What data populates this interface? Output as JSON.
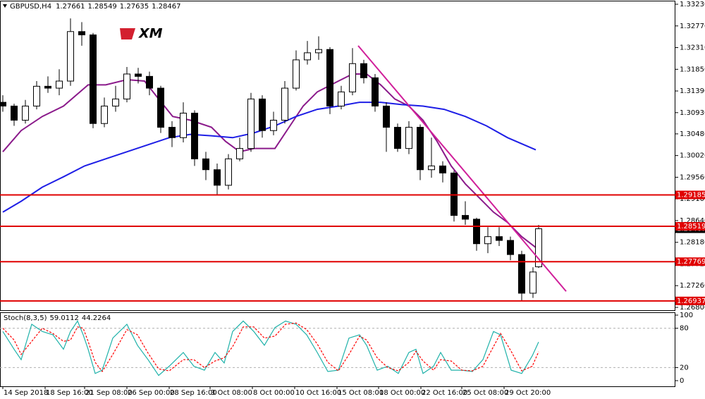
{
  "chart_data": [
    {
      "type": "candlestick",
      "title": "GBPUSD,H4",
      "ohlc": [
        1.27661,
        1.28549,
        1.27635,
        1.28467
      ],
      "logo": "XM",
      "bull_color": "#ffffff",
      "bear_color": "#000000",
      "x": [
        0,
        4,
        8,
        12,
        16,
        20,
        24,
        28,
        32,
        36,
        40,
        44,
        48,
        52,
        56,
        60,
        64,
        68,
        72,
        76,
        80,
        84,
        88,
        92,
        96,
        100,
        104,
        108,
        112,
        116,
        120,
        124,
        128,
        132,
        136,
        140,
        144,
        148,
        152,
        156,
        160,
        164,
        168,
        172,
        176,
        180,
        184,
        188,
        190
      ],
      "candles": [
        [
          1.3115,
          1.313,
          1.3095,
          1.3107
        ],
        [
          1.3107,
          1.3112,
          1.3065,
          1.3077
        ],
        [
          1.3077,
          1.312,
          1.307,
          1.3107
        ],
        [
          1.3107,
          1.316,
          1.31,
          1.3149
        ],
        [
          1.3149,
          1.317,
          1.3135,
          1.3145
        ],
        [
          1.3145,
          1.3185,
          1.313,
          1.316
        ],
        [
          1.316,
          1.3293,
          1.315,
          1.3265
        ],
        [
          1.3265,
          1.3285,
          1.3235,
          1.3258
        ],
        [
          1.3258,
          1.3262,
          1.306,
          1.307
        ],
        [
          1.307,
          1.3125,
          1.3062,
          1.3107
        ],
        [
          1.3107,
          1.315,
          1.3095,
          1.3122
        ],
        [
          1.3122,
          1.319,
          1.3115,
          1.3175
        ],
        [
          1.3175,
          1.3188,
          1.3155,
          1.317
        ],
        [
          1.317,
          1.318,
          1.313,
          1.3145
        ],
        [
          1.3145,
          1.315,
          1.305,
          1.3062
        ],
        [
          1.3062,
          1.3075,
          1.302,
          1.304
        ],
        [
          1.304,
          1.3115,
          1.303,
          1.3092
        ],
        [
          1.3092,
          1.3098,
          1.298,
          1.2995
        ],
        [
          1.2995,
          1.301,
          1.295,
          1.2972
        ],
        [
          1.2972,
          1.2985,
          1.292,
          1.2939
        ],
        [
          1.2939,
          1.3005,
          1.293,
          1.2995
        ],
        [
          1.2995,
          1.304,
          1.299,
          1.3017
        ],
        [
          1.3017,
          1.3135,
          1.301,
          1.3122
        ],
        [
          1.3122,
          1.313,
          1.304,
          1.3055
        ],
        [
          1.3055,
          1.3095,
          1.3045,
          1.3077
        ],
        [
          1.3077,
          1.316,
          1.307,
          1.3145
        ],
        [
          1.3145,
          1.3225,
          1.314,
          1.3205
        ],
        [
          1.3205,
          1.3245,
          1.3195,
          1.322
        ],
        [
          1.322,
          1.3255,
          1.3205,
          1.3227
        ],
        [
          1.3227,
          1.3232,
          1.309,
          1.3107
        ],
        [
          1.3107,
          1.315,
          1.31,
          1.3137
        ],
        [
          1.3137,
          1.323,
          1.313,
          1.3197
        ],
        [
          1.3197,
          1.3205,
          1.3155,
          1.3167
        ],
        [
          1.3167,
          1.3175,
          1.3095,
          1.3107
        ],
        [
          1.3107,
          1.3115,
          1.301,
          1.3062
        ],
        [
          1.3062,
          1.307,
          1.301,
          1.3017
        ],
        [
          1.3017,
          1.3075,
          1.3005,
          1.3062
        ],
        [
          1.3062,
          1.3068,
          1.295,
          1.2972
        ],
        [
          1.2972,
          1.304,
          1.2955,
          1.298
        ],
        [
          1.298,
          1.299,
          1.2945,
          1.2965
        ],
        [
          1.2965,
          1.297,
          1.2862,
          1.2875
        ],
        [
          1.2875,
          1.2905,
          1.2855,
          1.2867
        ],
        [
          1.2867,
          1.287,
          1.28,
          1.2815
        ],
        [
          1.2815,
          1.285,
          1.2795,
          1.283
        ],
        [
          1.283,
          1.285,
          1.281,
          1.2822
        ],
        [
          1.2822,
          1.283,
          1.278,
          1.2792
        ],
        [
          1.2792,
          1.28,
          1.2695,
          1.271
        ],
        [
          1.271,
          1.2765,
          1.27,
          1.2755
        ],
        [
          1.27661,
          1.28549,
          1.27635,
          1.28467
        ]
      ],
      "overlays": [
        {
          "color": "#8b1a8b",
          "x": [
            0,
            6.5,
            14,
            21.5,
            30.25,
            36.5,
            44,
            50.25,
            55.25,
            60.25,
            66.5,
            74,
            79,
            84,
            89,
            96.5,
            101.5,
            106.5,
            111.5,
            119,
            124,
            129,
            134,
            139,
            144,
            149,
            154,
            159,
            164,
            169,
            174,
            179,
            184,
            189
          ],
          "values": [
            1.301,
            1.3055,
            1.3085,
            1.3107,
            1.3152,
            1.3152,
            1.3163,
            1.316,
            1.3122,
            1.3085,
            1.3077,
            1.3062,
            1.3032,
            1.301,
            1.3017,
            1.3017,
            1.3062,
            1.3107,
            1.3137,
            1.316,
            1.3175,
            1.3175,
            1.3152,
            1.3122,
            1.3107,
            1.3077,
            1.3032,
            1.298,
            1.2942,
            1.2912,
            1.2882,
            1.286,
            1.283,
            1.2807
          ]
        },
        {
          "color": "#1e1ee6",
          "x": [
            0,
            6.5,
            14,
            21.5,
            29,
            36.5,
            44,
            51.5,
            59,
            66.5,
            74,
            81.5,
            89,
            96.5,
            104,
            111.5,
            119,
            126.5,
            134,
            141.5,
            149,
            156.5,
            164,
            171.5,
            179,
            189
          ],
          "values": [
            1.2882,
            1.2905,
            1.2935,
            1.2957,
            1.298,
            1.2995,
            1.301,
            1.3025,
            1.304,
            1.3047,
            1.3044,
            1.304,
            1.305,
            1.3065,
            1.3085,
            1.31,
            1.3107,
            1.3115,
            1.3115,
            1.311,
            1.3107,
            1.31,
            1.3085,
            1.3065,
            1.304,
            1.3014
          ]
        }
      ],
      "trendline": {
        "color": "#d01f9a",
        "x": [
          126,
          199.75
        ],
        "values": [
          1.3235,
          1.2714
        ]
      },
      "levels": {
        "color": "#e00000",
        "values": [
          1.29185,
          1.28519,
          1.27769,
          1.26937
        ]
      },
      "xlim": [
        -1,
        238.5
      ],
      "ylim": [
        1.2674,
        1.3329
      ],
      "yticks": [
        {
          "value": 1.3323,
          "label": "1.33230"
        },
        {
          "value": 1.3277,
          "label": "1.32770"
        },
        {
          "value": 1.3231,
          "label": "1.32310"
        },
        {
          "value": 1.3185,
          "label": "1.31850"
        },
        {
          "value": 1.3139,
          "label": "1.31390"
        },
        {
          "value": 1.3093,
          "label": "1.30930"
        },
        {
          "value": 1.3048,
          "label": "1.30480"
        },
        {
          "value": 1.3002,
          "label": "1.30020"
        },
        {
          "value": 1.2956,
          "label": "1.29560"
        },
        {
          "value": 1.291,
          "label": "1.29100"
        },
        {
          "value": 1.2864,
          "label": "1.28640"
        },
        {
          "value": 1.2818,
          "label": "1.28180"
        },
        {
          "value": 1.2772,
          "label": "1.27720"
        },
        {
          "value": 1.2726,
          "label": "1.27260"
        },
        {
          "value": 1.268,
          "label": "1.26800"
        }
      ],
      "xticks": [
        {
          "value": 0,
          "label": "14 Sep 2018"
        },
        {
          "value": 15,
          "label": "18 Sep 16:00"
        },
        {
          "value": 29,
          "label": "21 Sep 08:00"
        },
        {
          "value": 44,
          "label": "26 Sep 00:00"
        },
        {
          "value": 59,
          "label": "28 Sep 16:00"
        },
        {
          "value": 73.5,
          "label": "3 Oct 08:00"
        },
        {
          "value": 88.5,
          "label": "8 Oct 00:00"
        },
        {
          "value": 103.5,
          "label": "10 Oct 16:00"
        },
        {
          "value": 118.5,
          "label": "15 Oct 08:00"
        },
        {
          "value": 133.25,
          "label": "18 Oct 00:00"
        },
        {
          "value": 148.25,
          "label": "22 Oct 16:00"
        },
        {
          "value": 162.75,
          "label": "25 Oct 08:00"
        },
        {
          "value": 177.75,
          "label": "29 Oct 20:00"
        }
      ]
    },
    {
      "type": "line",
      "title": "Stoch(8,3,5)",
      "xlim": [
        -1,
        238.5
      ],
      "ylim": [
        -8.6,
        104.3
      ],
      "yticks": [
        100,
        80,
        20,
        0
      ],
      "levels": [
        80,
        20
      ],
      "x": [
        0,
        4,
        6.5,
        10.25,
        14,
        17.75,
        21.5,
        24,
        26.5,
        28.5,
        30.25,
        32.75,
        35.25,
        39,
        44,
        47.75,
        51.5,
        55.25,
        59,
        64,
        67.75,
        71.5,
        75.25,
        78.5,
        81.5,
        85.25,
        89,
        92.75,
        96.5,
        100.25,
        104,
        107.75,
        111.5,
        115.25,
        119,
        122.75,
        126.5,
        129,
        132.75,
        136.5,
        140.25,
        144,
        146.5,
        149,
        152.75,
        155.25,
        159,
        162.75,
        166.5,
        170.25,
        174,
        176.5,
        180.25,
        184,
        187.75,
        190
      ],
      "series": [
        {
          "color": "#20b2aa",
          "values": [
            75,
            48,
            32,
            86,
            75,
            70,
            48,
            75,
            91,
            70,
            48,
            11,
            16,
            65,
            86,
            54,
            32,
            8,
            22,
            43,
            22,
            16,
            43,
            27,
            75,
            91,
            75,
            54,
            81,
            91,
            86,
            70,
            43,
            14,
            16,
            65,
            70,
            54,
            16,
            22,
            11,
            43,
            48,
            11,
            22,
            43,
            16,
            16,
            14,
            32,
            75,
            70,
            16,
            11,
            38,
            59.0112
          ]
        },
        {
          "color": "#ff0000",
          "dash": true,
          "values": [
            80,
            62,
            40,
            60,
            80,
            72,
            60,
            62,
            82,
            80,
            60,
            28,
            14,
            40,
            78,
            70,
            42,
            18,
            15,
            32,
            32,
            20,
            30,
            35,
            52,
            82,
            82,
            65,
            68,
            86,
            88,
            78,
            56,
            28,
            15,
            40,
            68,
            62,
            35,
            20,
            15,
            28,
            45,
            30,
            16,
            32,
            30,
            16,
            15,
            22,
            52,
            72,
            45,
            15,
            22,
            44.2264
          ]
        }
      ]
    }
  ]
}
